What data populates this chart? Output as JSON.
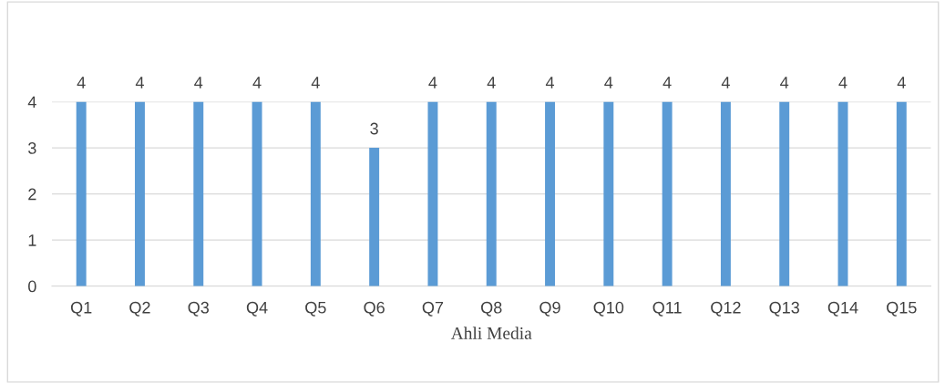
{
  "chart_data": {
    "type": "bar",
    "xlabel": "Ahli Media",
    "categories": [
      "Q1",
      "Q2",
      "Q3",
      "Q4",
      "Q5",
      "Q6",
      "Q7",
      "Q8",
      "Q9",
      "Q10",
      "Q11",
      "Q12",
      "Q13",
      "Q14",
      "Q15"
    ],
    "values": [
      4,
      4,
      4,
      4,
      4,
      3,
      4,
      4,
      4,
      4,
      4,
      4,
      4,
      4,
      4
    ],
    "color": "#5b9bd5",
    "ylim": [
      0,
      4
    ],
    "yticks": [
      0,
      1,
      2,
      3,
      4
    ],
    "grid": "y",
    "data_labels": true,
    "legend": false
  }
}
